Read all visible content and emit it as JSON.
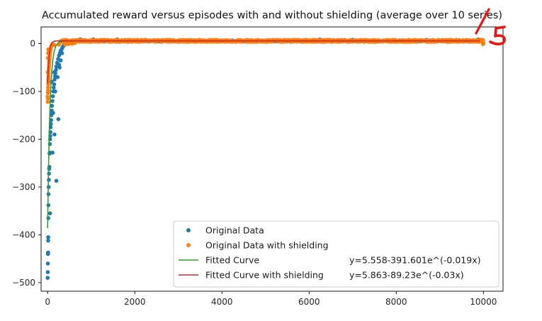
{
  "chart_data": {
    "type": "scatter",
    "title": "Accumulated reward versus episodes with and without shielding (average over 10 series)",
    "xlabel": "",
    "ylabel": "",
    "xlim": [
      -150,
      10450
    ],
    "ylim": [
      -518,
      35
    ],
    "x_ticks": [
      0,
      2000,
      4000,
      6000,
      8000,
      10000
    ],
    "y_ticks": [
      0,
      -100,
      -200,
      -300,
      -400,
      -500
    ],
    "grid": false,
    "legend_position": "lower-right",
    "colors": {
      "original": "#1f77b4",
      "shielding": "#ff7f0e",
      "fit": "#2ca02c",
      "fit_shielding": "#d62728",
      "annotation": "#ee1111"
    },
    "series": [
      {
        "name": "Original Data",
        "kind": "points",
        "model": {
          "a": 5.558,
          "b": -391.601,
          "k": -0.019
        },
        "points": [
          [
            0,
            -490
          ],
          [
            3,
            -478
          ],
          [
            5,
            -460
          ],
          [
            8,
            -440
          ],
          [
            10,
            -437
          ],
          [
            12,
            -412
          ],
          [
            14,
            -405
          ],
          [
            16,
            -365
          ],
          [
            18,
            -338
          ],
          [
            20,
            -315
          ],
          [
            24,
            -300
          ],
          [
            28,
            -285
          ],
          [
            32,
            -272
          ],
          [
            36,
            -262
          ],
          [
            40,
            -258
          ],
          [
            44,
            -230
          ],
          [
            48,
            -228
          ],
          [
            52,
            -210
          ],
          [
            56,
            -200
          ],
          [
            60,
            -193
          ],
          [
            65,
            -185
          ],
          [
            70,
            -175
          ],
          [
            75,
            -168
          ],
          [
            80,
            -160
          ],
          [
            85,
            -150
          ],
          [
            90,
            -145
          ],
          [
            95,
            -140
          ],
          [
            100,
            -130
          ],
          [
            110,
            -120
          ],
          [
            120,
            -110
          ],
          [
            130,
            -100
          ],
          [
            140,
            -92
          ],
          [
            150,
            -85
          ],
          [
            160,
            -75
          ],
          [
            170,
            -68
          ],
          [
            180,
            -62
          ],
          [
            190,
            -55
          ],
          [
            200,
            -48
          ],
          [
            220,
            -40
          ],
          [
            240,
            -32
          ],
          [
            260,
            -25
          ],
          [
            280,
            -20
          ],
          [
            300,
            -15
          ],
          [
            320,
            -12
          ],
          [
            340,
            -8
          ],
          [
            360,
            -5
          ],
          [
            380,
            -3
          ],
          [
            400,
            -1
          ],
          [
            112,
            -228
          ],
          [
            158,
            -190
          ],
          [
            200,
            -287
          ],
          [
            246,
            -158
          ],
          [
            55,
            -355
          ],
          [
            125,
            -145
          ],
          [
            175,
            -100
          ],
          [
            230,
            -70
          ],
          [
            275,
            -50
          ],
          [
            300,
            -35
          ],
          [
            150,
            -60
          ],
          [
            92,
            -80
          ],
          [
            260,
            -44
          ],
          [
            330,
            -20
          ]
        ]
      },
      {
        "name": "Original Data with shielding",
        "kind": "points",
        "model": {
          "a": 5.863,
          "b": -89.23,
          "k": -0.03
        },
        "points": [
          [
            0,
            -110
          ],
          [
            2,
            -122
          ],
          [
            4,
            -115
          ],
          [
            6,
            -103
          ],
          [
            8,
            -98
          ],
          [
            10,
            -92
          ],
          [
            12,
            -85
          ],
          [
            14,
            -80
          ],
          [
            16,
            -76
          ],
          [
            18,
            -72
          ],
          [
            20,
            -68
          ],
          [
            22,
            -62
          ],
          [
            25,
            -55
          ],
          [
            28,
            -50
          ],
          [
            31,
            -45
          ],
          [
            34,
            -40
          ],
          [
            37,
            -36
          ],
          [
            40,
            -32
          ],
          [
            44,
            -28
          ],
          [
            48,
            -25
          ],
          [
            52,
            -21
          ],
          [
            56,
            -18
          ],
          [
            60,
            -15
          ],
          [
            65,
            -12
          ],
          [
            70,
            -10
          ],
          [
            76,
            -8
          ],
          [
            82,
            -6
          ],
          [
            90,
            -4
          ],
          [
            100,
            -2
          ],
          [
            110,
            -1
          ],
          [
            5,
            -30
          ],
          [
            9,
            -20
          ],
          [
            15,
            -12
          ],
          [
            3,
            -60
          ],
          [
            27,
            -18
          ]
        ]
      },
      {
        "name": "Fitted Curve",
        "kind": "fit",
        "equation": "y=5.558-391.601e^(-0.019x)",
        "model": {
          "a": 5.558,
          "b": -391.601,
          "k": -0.019
        }
      },
      {
        "name": "Fitted Curve with shielding",
        "kind": "fit",
        "equation": "y=5.863-89.23e^(-0.03x)",
        "model": {
          "a": 5.863,
          "b": -89.23,
          "k": -0.03
        }
      }
    ],
    "annotation": {
      "kind": "handwritten",
      "text": "/5"
    }
  }
}
